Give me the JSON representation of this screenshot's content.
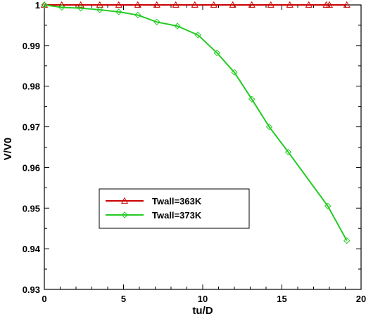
{
  "chart_data": {
    "type": "line",
    "xlabel": "tu/D",
    "ylabel": "V/V0",
    "xlim": [
      0,
      20
    ],
    "ylim": [
      0.93,
      1.0
    ],
    "xticks": [
      0,
      5,
      10,
      15,
      20
    ],
    "yticks": [
      0.93,
      0.94,
      0.95,
      0.96,
      0.97,
      0.98,
      0.99,
      1
    ],
    "xtick_labels": [
      "0",
      "5",
      "10",
      "15",
      "20"
    ],
    "ytick_labels": [
      "0.93",
      "0.94",
      "0.95",
      "0.96",
      "0.97",
      "0.98",
      "0.99",
      "1"
    ],
    "grid": false,
    "legend_position": "center-left",
    "series": [
      {
        "name": "Twall=363K",
        "color": "#cc0000",
        "marker": "triangle",
        "x": [
          0,
          1.1,
          2.3,
          3.5,
          4.7,
          5.9,
          7.1,
          8.3,
          9.5,
          10.7,
          11.9,
          13.1,
          14.3,
          15.5,
          16.7,
          17.8,
          18.0,
          19.1
        ],
        "y": [
          1.0,
          1.0,
          1.0,
          1.0,
          1.0,
          1.0,
          1.0,
          1.0,
          1.0,
          1.0,
          1.0,
          1.0,
          1.0,
          1.0,
          1.0,
          1.0,
          1.0,
          1.0
        ]
      },
      {
        "name": "Twall=373K",
        "color": "#22cc22",
        "marker": "diamond",
        "x": [
          0,
          1.1,
          2.3,
          3.5,
          4.7,
          5.9,
          7.1,
          8.4,
          9.7,
          10.9,
          12.0,
          13.1,
          14.2,
          15.4,
          17.9,
          19.1
        ],
        "y": [
          1.0,
          0.9994,
          0.9992,
          0.9988,
          0.9983,
          0.9975,
          0.9958,
          0.9948,
          0.9926,
          0.9882,
          0.9834,
          0.9768,
          0.97,
          0.9638,
          0.9505,
          0.942
        ]
      }
    ]
  }
}
